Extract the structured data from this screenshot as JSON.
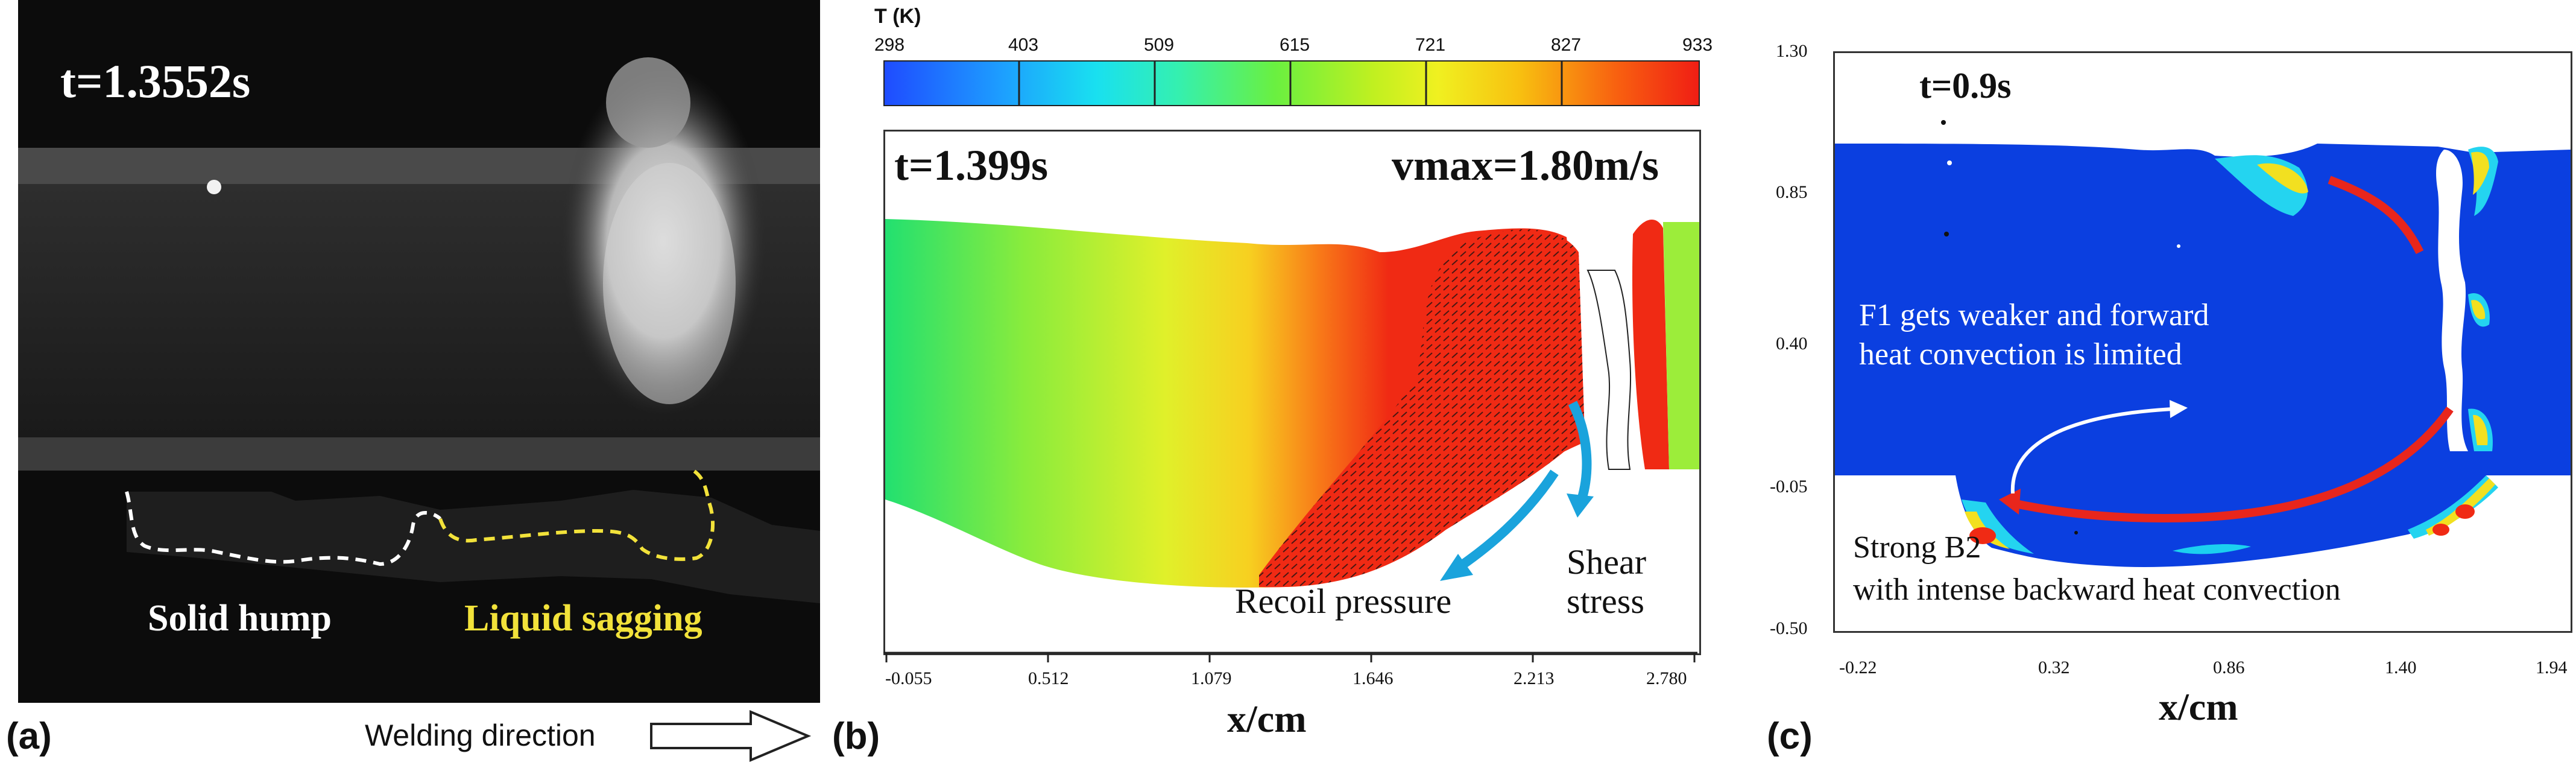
{
  "panel_a": {
    "label": "(a)",
    "time": "t=1.3552s",
    "solid_label": "Solid hump",
    "liquid_label": "Liquid sagging",
    "direction_label": "Welding direction",
    "colors": {
      "solid": "#ffffff",
      "liquid": "#f2e23a"
    }
  },
  "panel_b": {
    "label": "(b)",
    "time": "t=1.399s",
    "vmax": "vmax=1.80m/s",
    "recoil_label": "Recoil pressure",
    "shear_label_1": "Shear",
    "shear_label_2": "stress",
    "xlabel": "x/cm",
    "colorbar_title": "T (K)",
    "colorbar_ticks": [
      "298",
      "403",
      "509",
      "615",
      "721",
      "827",
      "933"
    ],
    "x_ticks": [
      "-0.055",
      "0.512",
      "1.079",
      "1.646",
      "2.213",
      "2.780"
    ],
    "colors": {
      "arrow": "#1aa3dc"
    }
  },
  "panel_c": {
    "label": "(c)",
    "time": "t=0.9s",
    "annotation_f1_line1": "F1 gets weaker and forward",
    "annotation_f1_line2": "heat convection is limited",
    "annotation_b2_line1": "Strong B2",
    "annotation_b2_line2": "with intense backward heat convection",
    "xlabel": "x/cm",
    "x_ticks": [
      "-0.22",
      "0.32",
      "0.86",
      "1.40",
      "1.94"
    ],
    "y_ticks": [
      "1.30",
      "0.85",
      "0.40",
      "-0.05",
      "-0.50"
    ],
    "colors": {
      "pool": "#0b3fe0",
      "flow": "#e8261c"
    }
  }
}
